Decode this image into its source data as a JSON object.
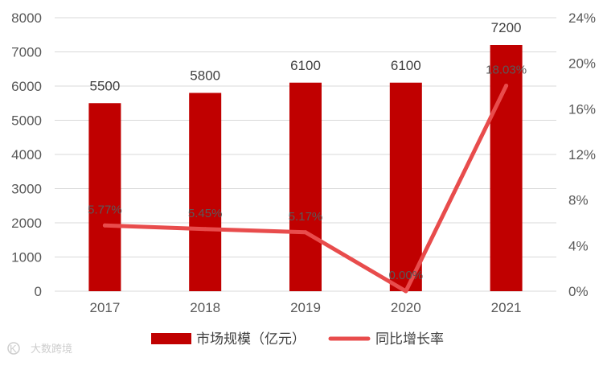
{
  "colors": {
    "bar": "#C00000",
    "line": "#E84C4C",
    "grid": "#D9D9D9",
    "axis_text": "#595959"
  },
  "watermark": {
    "text": "大数跨境",
    "logo_text": "K"
  },
  "chart_data": {
    "type": "bar",
    "categories": [
      "2017",
      "2018",
      "2019",
      "2020",
      "2021"
    ],
    "grid": true,
    "legend_position": "bottom",
    "y_left": {
      "ylim": [
        0,
        8000
      ],
      "ticks": [
        0,
        1000,
        2000,
        3000,
        4000,
        5000,
        6000,
        7000,
        8000
      ]
    },
    "y_right": {
      "ylim": [
        0,
        24
      ],
      "ticks": [
        "0%",
        "4%",
        "8%",
        "12%",
        "16%",
        "20%",
        "24%"
      ],
      "tick_values": [
        0,
        4,
        8,
        12,
        16,
        20,
        24
      ]
    },
    "series": [
      {
        "name": "市场规模（亿元）",
        "kind": "bar",
        "axis": "left",
        "values": [
          5500,
          5800,
          6100,
          6100,
          7200
        ],
        "labels": [
          "5500",
          "5800",
          "6100",
          "6100",
          "7200"
        ]
      },
      {
        "name": "同比增长率",
        "kind": "line",
        "axis": "right",
        "values": [
          5.77,
          5.45,
          5.17,
          0.0,
          18.03
        ],
        "labels": [
          "5.77%",
          "5.45%",
          "5.17%",
          "0.00%",
          "18.03%"
        ]
      }
    ]
  }
}
